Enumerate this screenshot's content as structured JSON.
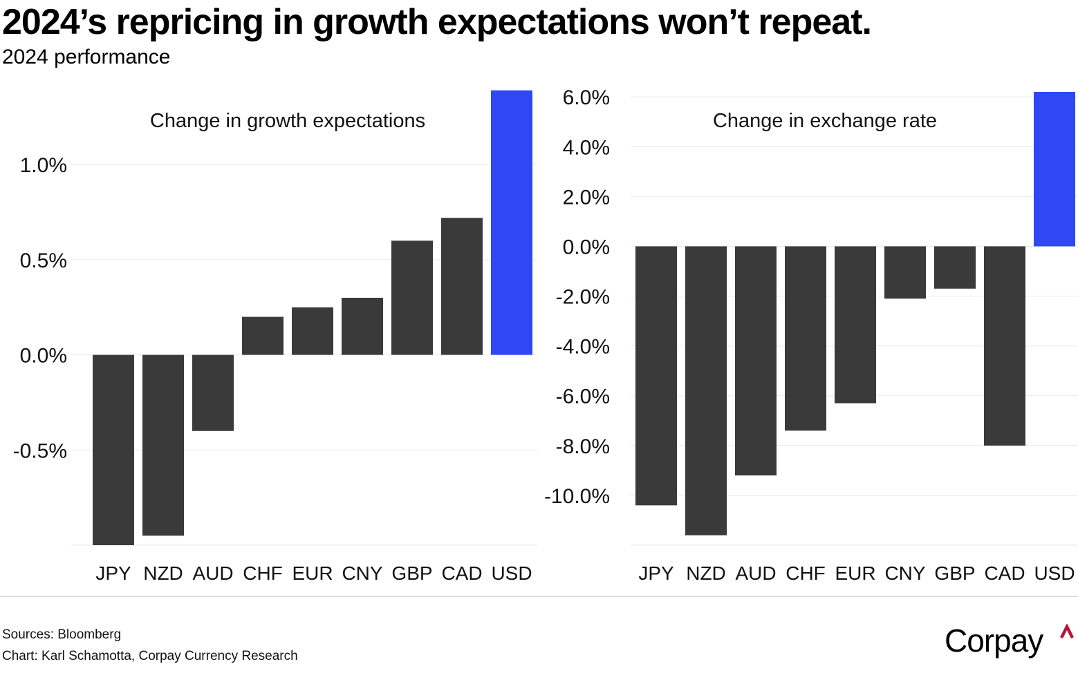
{
  "header": {
    "title": "2024’s repricing in growth expectations won’t repeat.",
    "subtitle": "2024 performance"
  },
  "footer": {
    "source": "Sources: Bloomberg",
    "credit": "Chart: Karl Schamotta, Corpay Currency Research",
    "logo_text": "Corpay",
    "logo_icon": "caret-up-icon",
    "logo_accent": "#b5163a"
  },
  "colors": {
    "bar_default": "#3a3a3a",
    "bar_highlight": "#2f47f5",
    "grid": "#ececec"
  },
  "chart_data": [
    {
      "type": "bar",
      "title": "Change in growth expectations",
      "xlabel": "",
      "ylabel": "",
      "categories": [
        "JPY",
        "NZD",
        "AUD",
        "CHF",
        "EUR",
        "CNY",
        "GBP",
        "CAD",
        "USD"
      ],
      "values": [
        -1.0,
        -0.95,
        -0.4,
        0.2,
        0.25,
        0.3,
        0.6,
        0.72,
        1.39
      ],
      "highlight": [
        "USD"
      ],
      "unit": "%",
      "ylim": [
        -1.0,
        1.4
      ],
      "yticks": [
        -1.0,
        -0.5,
        0.0,
        0.5,
        1.0
      ],
      "ytick_labels": [
        "",
        "-0.5%",
        "0.0%",
        "0.5%",
        "1.0%"
      ],
      "grid": true,
      "legend": "none"
    },
    {
      "type": "bar",
      "title": "Change in exchange rate",
      "xlabel": "",
      "ylabel": "",
      "categories": [
        "JPY",
        "NZD",
        "AUD",
        "CHF",
        "EUR",
        "CNY",
        "GBP",
        "CAD",
        "USD"
      ],
      "values": [
        -10.4,
        -11.6,
        -9.2,
        -7.4,
        -6.3,
        -2.1,
        -1.7,
        -8.0,
        6.2
      ],
      "highlight": [
        "USD"
      ],
      "unit": "%",
      "ylim": [
        -12.0,
        6.2
      ],
      "yticks": [
        -12.0,
        -10.0,
        -8.0,
        -6.0,
        -4.0,
        -2.0,
        0.0,
        2.0,
        4.0,
        6.0
      ],
      "ytick_labels": [
        "",
        "-10.0%",
        "-8.0%",
        "-6.0%",
        "-4.0%",
        "-2.0%",
        "0.0%",
        "2.0%",
        "4.0%",
        "6.0%"
      ],
      "grid": true,
      "legend": "none"
    }
  ]
}
